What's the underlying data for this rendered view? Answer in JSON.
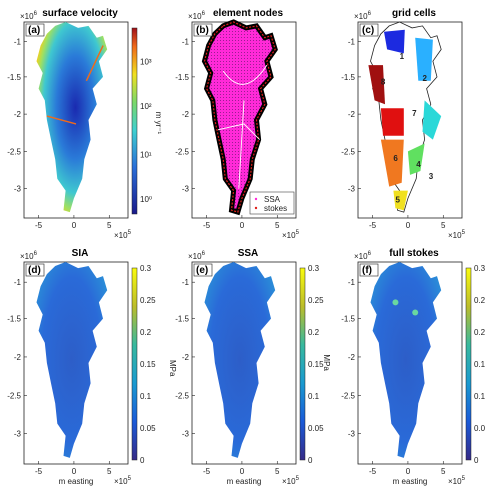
{
  "chart_data": [
    {
      "id": "a",
      "panel_label": "(a)",
      "title": "surface velocity",
      "type": "heatmap",
      "axes_prefix": "×10",
      "axes_exp": "6",
      "xaxis_prefix": "×10",
      "xaxis_exp": "5",
      "xticks": [
        "-5",
        "0",
        "5"
      ],
      "yticks": [
        "-1",
        "-1.5",
        "-2",
        "-2.5",
        "-3"
      ],
      "xlabel": "",
      "ylabel": "",
      "colorbar": {
        "label": "m yr⁻¹",
        "scale": "log",
        "ticks": [
          "10³",
          "10²",
          "10¹",
          "10⁰"
        ]
      }
    },
    {
      "id": "b",
      "panel_label": "(b)",
      "title": "element nodes",
      "type": "scatter",
      "axes_prefix": "×10",
      "axes_exp": "6",
      "xaxis_prefix": "×10",
      "xaxis_exp": "5",
      "xticks": [
        "-5",
        "0",
        "5"
      ],
      "yticks": [
        "-1",
        "-1.5",
        "-2",
        "-2.5",
        "-3"
      ],
      "xlabel": "",
      "ylabel": "",
      "legend": [
        "SSA",
        "stokes"
      ]
    },
    {
      "id": "c",
      "panel_label": "(c)",
      "title": "grid cells",
      "type": "heatmap",
      "axes_prefix": "×10",
      "axes_exp": "6",
      "xaxis_prefix": "×10",
      "xaxis_exp": "5",
      "xticks": [
        "-5",
        "0",
        "5"
      ],
      "yticks": [
        "-1",
        "-1.5",
        "-2",
        "-2.5",
        "-3"
      ],
      "xlabel": "",
      "ylabel": "",
      "regions": [
        "1",
        "2",
        "3",
        "4",
        "5",
        "6",
        "7",
        "8"
      ]
    },
    {
      "id": "d",
      "panel_label": "(d)",
      "title": "SIA",
      "type": "heatmap",
      "axes_prefix": "×10",
      "axes_exp": "6",
      "xaxis_prefix": "×10",
      "xaxis_exp": "5",
      "xticks": [
        "-5",
        "0",
        "5"
      ],
      "yticks": [
        "-1",
        "-1.5",
        "-2",
        "-2.5",
        "-3"
      ],
      "xlabel": "m easting",
      "ylabel": "",
      "colorbar": {
        "label": "",
        "ticks": [
          "0.3",
          "0.25",
          "0.2",
          "0.15",
          "0.1",
          "0.05",
          "0"
        ],
        "range": [
          0,
          0.3
        ]
      }
    },
    {
      "id": "e",
      "panel_label": "(e)",
      "title": "SSA",
      "type": "heatmap",
      "axes_prefix": "×10",
      "axes_exp": "6",
      "xaxis_prefix": "×10",
      "xaxis_exp": "5",
      "xticks": [
        "-5",
        "0",
        "5"
      ],
      "yticks": [
        "-1",
        "-1.5",
        "-2",
        "-2.5",
        "-3"
      ],
      "xlabel": "m easting",
      "ylabel": "",
      "colorbar": {
        "label": "MPa",
        "ticks": [
          "0.3",
          "0.25",
          "0.2",
          "0.15",
          "0.1",
          "0.05",
          "0"
        ],
        "range": [
          0,
          0.3
        ]
      }
    },
    {
      "id": "f",
      "panel_label": "(f)",
      "title": "full stokes",
      "type": "heatmap",
      "axes_prefix": "×10",
      "axes_exp": "6",
      "xaxis_prefix": "×10",
      "xaxis_exp": "5",
      "xticks": [
        "-5",
        "0",
        "5"
      ],
      "yticks": [
        "-1",
        "-1.5",
        "-2",
        "-2.5",
        "-3"
      ],
      "xlabel": "m easting",
      "ylabel": "",
      "colorbar": {
        "label": "",
        "ticks": [
          "0.3",
          "0.2",
          "0.2",
          "0.1",
          "0.1",
          "0.0",
          "0"
        ],
        "range": [
          0,
          0.3
        ]
      }
    }
  ],
  "shared": {
    "left_unit_d": "MPa"
  },
  "colors": {
    "velocity_low": "#1a2a8a",
    "velocity_mid": "#3fb4d8",
    "velocity_high": "#f0e020",
    "parula_low": "#352a87",
    "parula_mid": "#2a8ad8",
    "parula_high": "#f9fb0e",
    "node_magenta": "#ff2ad8",
    "node_red": "#e0201a",
    "region_1": "#1c2ae0",
    "region_2": "#2ab0ff",
    "region_3": "#2ad8d8",
    "region_4": "#60e060",
    "region_5": "#f0e020",
    "region_6": "#f07820",
    "region_7": "#e01010",
    "region_8": "#a01010"
  }
}
